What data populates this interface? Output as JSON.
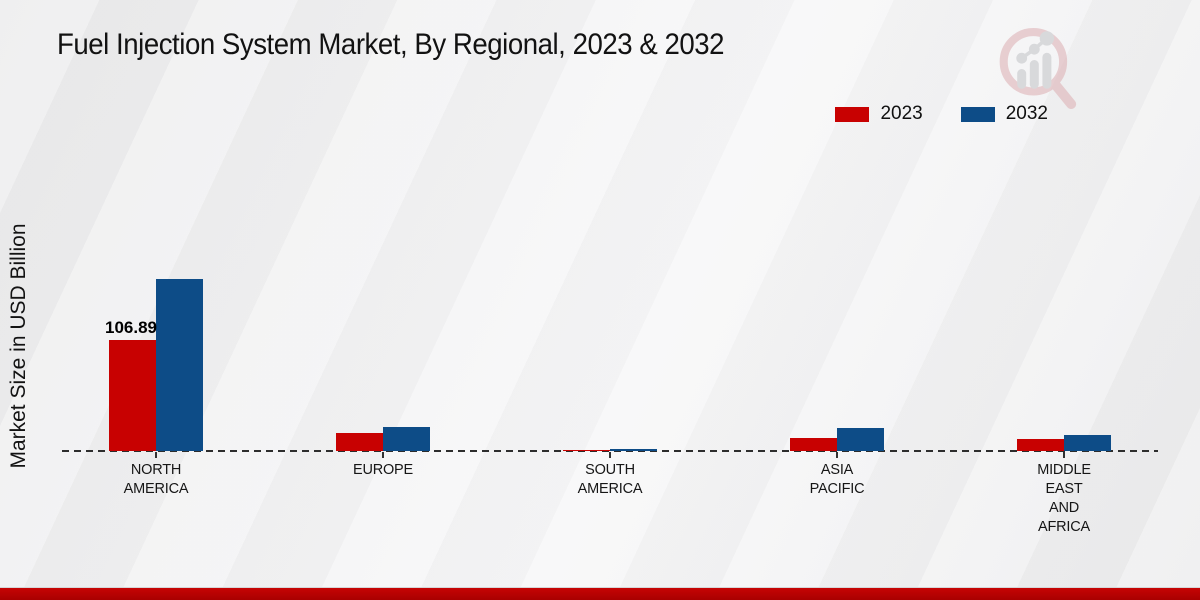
{
  "page": {
    "title": "Fuel Injection System Market, By Regional, 2023 & 2032"
  },
  "chart_data": {
    "type": "bar",
    "title": "Fuel Injection System Market, By Regional, 2023 & 2032",
    "ylabel": "Market Size in USD Billion",
    "xlabel": "",
    "categories": [
      "North America",
      "Europe",
      "South America",
      "Asia Pacific",
      "Middle East and Africa"
    ],
    "category_label_lines": [
      [
        "NORTH",
        "AMERICA"
      ],
      [
        "EUROPE"
      ],
      [
        "SOUTH",
        "AMERICA"
      ],
      [
        "ASIA",
        "PACIFIC"
      ],
      [
        "MIDDLE",
        "EAST",
        "AND",
        "AFRICA"
      ]
    ],
    "series": [
      {
        "name": "2023",
        "color": "#c80101",
        "values": [
          106.89,
          17.0,
          1.3,
          13.0,
          11.2
        ]
      },
      {
        "name": "2032",
        "color": "#0d4c87",
        "values": [
          165.4,
          23.0,
          1.9,
          21.8,
          15.8
        ]
      }
    ],
    "value_labels": [
      {
        "series": "2023",
        "category_index": 0,
        "text": "106.89"
      }
    ],
    "ylim": [
      0,
      180
    ],
    "grid": false,
    "legend_position": "top-right",
    "baseline_style": "dashed"
  },
  "watermark": {
    "icon": "magnifier-bar-chart-logo"
  },
  "footer": {
    "accent_color": "#bb0302"
  }
}
